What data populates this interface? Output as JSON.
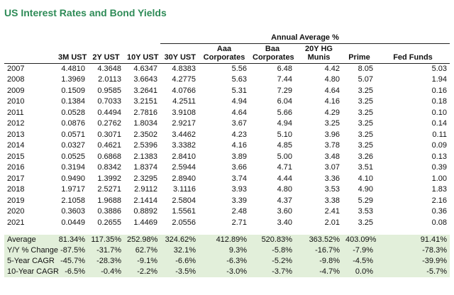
{
  "title": "US Interest Rates and Bond Yields",
  "table": {
    "group_header": "Annual Average %",
    "columns": [
      "3M UST",
      "2Y UST",
      "10Y UST",
      "30Y UST",
      "Aaa Corporates",
      "Baa Corporates",
      "20Y HG Munis",
      "Prime",
      "Fed Funds"
    ],
    "column_lines": [
      [
        "",
        "3M UST"
      ],
      [
        "",
        "2Y UST"
      ],
      [
        "",
        "10Y UST"
      ],
      [
        "",
        "30Y UST"
      ],
      [
        "Aaa",
        "Corporates"
      ],
      [
        "Baa",
        "Corporates"
      ],
      [
        "20Y HG",
        "Munis"
      ],
      [
        "",
        "Prime"
      ],
      [
        "",
        "Fed Funds"
      ]
    ],
    "rows": [
      {
        "year": "2007",
        "values": [
          "4.4810",
          "4.3648",
          "4.6347",
          "4.8383",
          "5.56",
          "6.48",
          "4.42",
          "8.05",
          "5.03"
        ]
      },
      {
        "year": "2008",
        "values": [
          "1.3969",
          "2.0113",
          "3.6643",
          "4.2775",
          "5.63",
          "7.44",
          "4.80",
          "5.07",
          "1.94"
        ]
      },
      {
        "year": "2009",
        "values": [
          "0.1509",
          "0.9585",
          "3.2641",
          "4.0766",
          "5.31",
          "7.29",
          "4.64",
          "3.25",
          "0.16"
        ]
      },
      {
        "year": "2010",
        "values": [
          "0.1384",
          "0.7033",
          "3.2151",
          "4.2511",
          "4.94",
          "6.04",
          "4.16",
          "3.25",
          "0.18"
        ]
      },
      {
        "year": "2011",
        "values": [
          "0.0528",
          "0.4494",
          "2.7816",
          "3.9108",
          "4.64",
          "5.66",
          "4.29",
          "3.25",
          "0.10"
        ]
      },
      {
        "year": "2012",
        "values": [
          "0.0876",
          "0.2762",
          "1.8034",
          "2.9217",
          "3.67",
          "4.94",
          "3.25",
          "3.25",
          "0.14"
        ]
      },
      {
        "year": "2013",
        "values": [
          "0.0571",
          "0.3071",
          "2.3502",
          "3.4462",
          "4.23",
          "5.10",
          "3.96",
          "3.25",
          "0.11"
        ]
      },
      {
        "year": "2014",
        "values": [
          "0.0327",
          "0.4621",
          "2.5396",
          "3.3382",
          "4.16",
          "4.85",
          "3.78",
          "3.25",
          "0.09"
        ]
      },
      {
        "year": "2015",
        "values": [
          "0.0525",
          "0.6868",
          "2.1383",
          "2.8410",
          "3.89",
          "5.00",
          "3.48",
          "3.26",
          "0.13"
        ]
      },
      {
        "year": "2016",
        "values": [
          "0.3194",
          "0.8342",
          "1.8374",
          "2.5944",
          "3.66",
          "4.71",
          "3.07",
          "3.51",
          "0.39"
        ]
      },
      {
        "year": "2017",
        "values": [
          "0.9490",
          "1.3992",
          "2.3295",
          "2.8940",
          "3.74",
          "4.44",
          "3.36",
          "4.10",
          "1.00"
        ]
      },
      {
        "year": "2018",
        "values": [
          "1.9717",
          "2.5271",
          "2.9112",
          "3.1116",
          "3.93",
          "4.80",
          "3.53",
          "4.90",
          "1.83"
        ]
      },
      {
        "year": "2019",
        "values": [
          "2.1058",
          "1.9688",
          "2.1414",
          "2.5804",
          "3.39",
          "4.37",
          "3.38",
          "5.29",
          "2.16"
        ]
      },
      {
        "year": "2020",
        "values": [
          "0.3603",
          "0.3886",
          "0.8892",
          "1.5561",
          "2.48",
          "3.60",
          "2.41",
          "3.53",
          "0.36"
        ]
      },
      {
        "year": "2021",
        "values": [
          "0.0449",
          "0.2655",
          "1.4469",
          "2.0556",
          "2.71",
          "3.40",
          "2.01",
          "3.25",
          "0.08"
        ]
      }
    ],
    "summary": [
      {
        "label": "Average",
        "values": [
          "81.34%",
          "117.35%",
          "252.98%",
          "324.62%",
          "412.89%",
          "520.83%",
          "363.52%",
          "403.09%",
          "91.41%"
        ]
      },
      {
        "label": "Y/Y % Change",
        "values": [
          "-87.5%",
          "-31.7%",
          "62.7%",
          "32.1%",
          "9.3%",
          "-5.8%",
          "-16.7%",
          "-7.9%",
          "-78.3%"
        ]
      },
      {
        "label": "5-Year CAGR",
        "values": [
          "-45.7%",
          "-28.3%",
          "-9.1%",
          "-6.6%",
          "-6.3%",
          "-5.2%",
          "-9.8%",
          "-4.5%",
          "-39.9%"
        ]
      },
      {
        "label": "10-Year CAGR",
        "values": [
          "-6.5%",
          "-0.4%",
          "-2.2%",
          "-3.5%",
          "-3.0%",
          "-3.7%",
          "-4.7%",
          "0.0%",
          "-5.7%"
        ]
      }
    ]
  }
}
